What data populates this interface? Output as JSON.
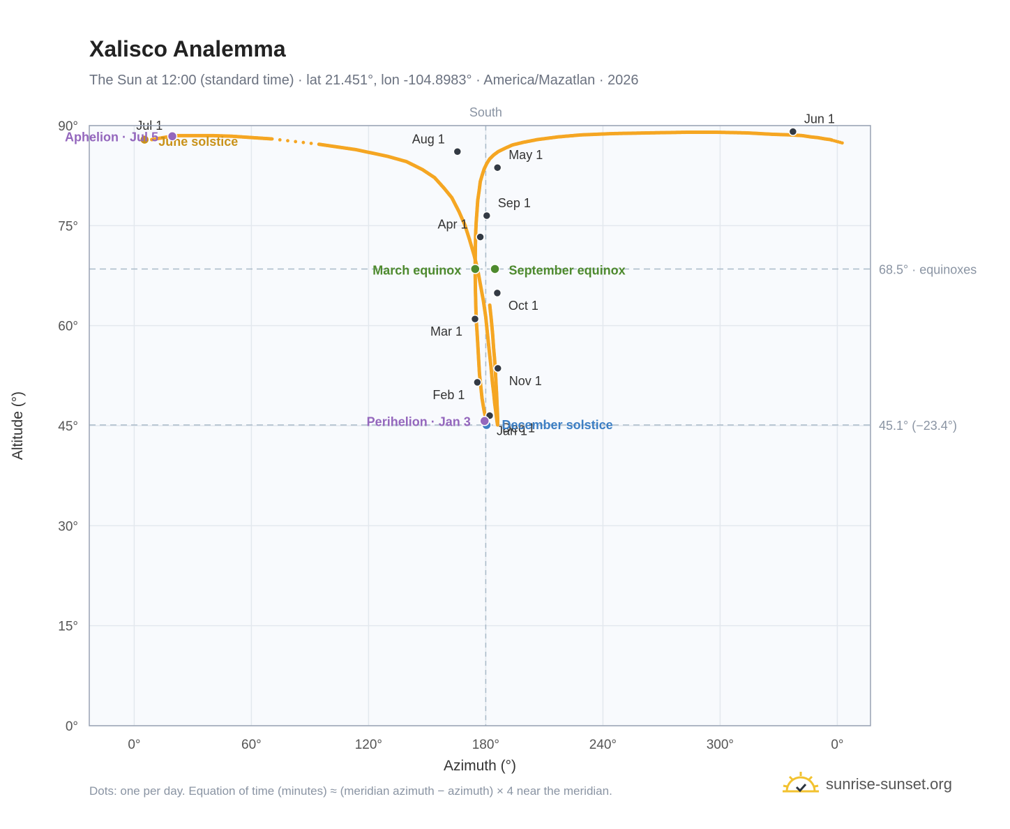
{
  "title": "Xalisco Analemma",
  "subtitle": "The Sun at 12:00 (standard time) · lat 21.451°, lon -104.8983° · America/Mazatlan · 2026",
  "footnote": "Dots: one per day. Equation of time (minutes) ≈ (meridian azimuth − azimuth) × 4 near the meridian.",
  "brand": {
    "name": "sunrise-sunset.org",
    "icon": "sunrise-logo-icon"
  },
  "colors": {
    "curve": "#f5a623",
    "month_marker": "#333a44",
    "equinox": "#4e8a2e",
    "june_solstice": "#c9921a",
    "december_solstice": "#3d7fc4",
    "apsis": "#9467bd",
    "plot_bg": "#f8fafd",
    "grid": "#e3e8ee",
    "reference_line": "#a9bac8"
  },
  "chart_data": {
    "type": "scatter",
    "title": "Xalisco Analemma",
    "xlabel": "Azimuth (°)",
    "ylabel": "Altitude (°)",
    "x_ticks": [
      "0°",
      "60°",
      "120°",
      "180°",
      "240°",
      "300°",
      "0°"
    ],
    "x_tick_values": [
      0,
      60,
      120,
      180,
      240,
      300,
      360
    ],
    "y_ticks": [
      "0°",
      "15°",
      "30°",
      "45°",
      "60°",
      "75°",
      "90°"
    ],
    "y_tick_values": [
      0,
      15,
      30,
      45,
      60,
      75,
      90
    ],
    "xlim": [
      -23,
      377
    ],
    "ylim": [
      0,
      90
    ],
    "grid": true,
    "meridian": {
      "azimuth": 180,
      "label": "South"
    },
    "reference_lines": [
      {
        "altitude": 68.5,
        "label": "68.5° · equinoxes"
      },
      {
        "altitude": 45.1,
        "label": "45.1° (−23.4°)"
      }
    ],
    "series": [
      {
        "points_per": "day",
        "x": [
          182,
          180.9,
          179.9,
          179,
          178.1,
          177.5,
          176.8,
          176.4,
          176,
          175.6,
          175.1,
          174.9,
          174.7,
          174.6,
          174.6,
          174.7,
          174.8,
          175.1,
          175.5,
          175.9,
          176.6,
          177.2,
          178.2,
          179.2,
          180.5,
          182,
          184.1,
          186.4,
          189.9,
          193.7,
          199.4,
          206.4,
          216.9,
          228.6,
          245.1,
          262.6,
          282.7,
          298.6,
          314.1,
          326.5,
          336.2,
          342,
          346.5,
          349.9,
          353.7,
          356.4,
          357.5,
          9,
          13,
          17,
          21.5,
          28,
          34.5,
          40,
          50.1,
          70.6,
          94.6,
          113.4,
          129.6,
          139.4,
          147.6,
          153.8,
          158.7,
          162.6,
          166.3,
          169.3,
          171.7,
          174,
          175.8,
          177.3,
          178.8,
          180,
          180.9,
          181.8,
          182.7,
          183.4,
          184.1,
          184.6,
          185.1,
          185.5,
          185.8,
          186,
          186.1,
          186.1,
          186.1,
          186,
          185.8,
          185.6,
          185.3,
          185,
          184.6,
          184,
          183.5,
          182.8,
          182
        ],
        "y": [
          45.1,
          45.4,
          46.2,
          47.5,
          49.1,
          50.8,
          52.7,
          54.7,
          56.8,
          58.8,
          61,
          63.1,
          65.4,
          67.5,
          69.6,
          71.7,
          73.6,
          75.5,
          77.1,
          78.8,
          80.2,
          81.6,
          82.6,
          83.5,
          84.3,
          85,
          85.6,
          86.1,
          86.6,
          87.1,
          87.5,
          87.9,
          88.3,
          88.6,
          88.8,
          88.9,
          89,
          89,
          88.9,
          88.7,
          88.6,
          88.5,
          88.3,
          88.2,
          88,
          87.9,
          87.8,
          87.9,
          88.1,
          88.3,
          88.5,
          88.5,
          88.5,
          88.5,
          88.4,
          88,
          87.2,
          86.4,
          85.4,
          84.6,
          83.4,
          82.2,
          80.6,
          79.2,
          77.1,
          75.1,
          72.9,
          70.6,
          68.5,
          66.1,
          63.7,
          61.3,
          58.7,
          56.2,
          53.8,
          51.5,
          49.8,
          48.3,
          47.2,
          46.2,
          45.6,
          45.2,
          45.1,
          45.4,
          46,
          46.9,
          48.1,
          49.5,
          51.1,
          52.8,
          54.7,
          56.7,
          58.8,
          61,
          63.2
        ]
      }
    ],
    "month_markers": [
      {
        "label": "Jan 1",
        "azimuth": 182,
        "altitude": 46.5
      },
      {
        "label": "Feb 1",
        "azimuth": 175.7,
        "altitude": 51.5
      },
      {
        "label": "Mar 1",
        "azimuth": 174.5,
        "altitude": 61
      },
      {
        "label": "Apr 1",
        "azimuth": 177.2,
        "altitude": 73.3
      },
      {
        "label": "May 1",
        "azimuth": 186,
        "altitude": 83.7
      },
      {
        "label": "Jun 1",
        "azimuth": 337.3,
        "altitude": 89.1
      },
      {
        "label": "Jul 1",
        "azimuth": 5.3,
        "altitude": 88
      },
      {
        "label": "Aug 1",
        "azimuth": 165.5,
        "altitude": 86.1
      },
      {
        "label": "Sep 1",
        "azimuth": 180.5,
        "altitude": 76.5
      },
      {
        "label": "Oct 1",
        "azimuth": 185.9,
        "altitude": 64.9
      },
      {
        "label": "Nov 1",
        "azimuth": 186.2,
        "altitude": 53.6
      },
      {
        "label": "Dec 1",
        "azimuth": 182,
        "altitude": 46.5
      }
    ],
    "events": [
      {
        "label": "March equinox",
        "azimuth": 174.6,
        "altitude": 68.5,
        "kind": "equinox"
      },
      {
        "label": "September equinox",
        "azimuth": 184.7,
        "altitude": 68.5,
        "kind": "equinox"
      },
      {
        "label": "June solstice",
        "azimuth": 5.3,
        "altitude": 87.9,
        "kind": "june_solstice"
      },
      {
        "label": "December solstice",
        "azimuth": 180.4,
        "altitude": 45.1,
        "kind": "december_solstice"
      },
      {
        "label": "Perihelion · Jan 3",
        "azimuth": 179.4,
        "altitude": 45.7,
        "kind": "apsis"
      },
      {
        "label": "Aphelion · Jul 5",
        "azimuth": 19.5,
        "altitude": 88.4,
        "kind": "apsis"
      }
    ]
  }
}
